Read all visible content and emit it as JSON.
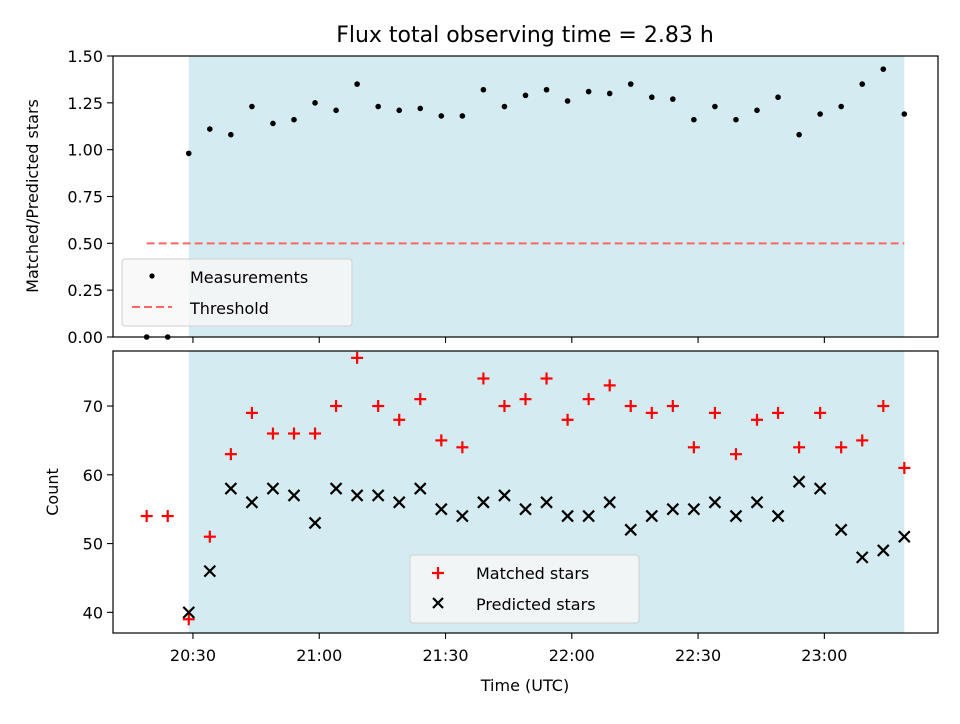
{
  "chart_data": [
    {
      "type": "scatter",
      "title": "Flux total observing time = 2.83 h",
      "ylabel": "Matched/Predicted stars",
      "ylim": [
        0,
        1.5
      ],
      "yticks": [
        "0.00",
        "0.25",
        "0.50",
        "0.75",
        "1.00",
        "1.25",
        "1.50"
      ],
      "shaded_span": [
        "20:29",
        "23:19"
      ],
      "legend_placement": "lower-left",
      "series": [
        {
          "name": "Measurements",
          "x": [
            "20:19",
            "20:24",
            "20:29",
            "20:34",
            "20:39",
            "20:44",
            "20:49",
            "20:54",
            "20:59",
            "21:04",
            "21:09",
            "21:14",
            "21:19",
            "21:24",
            "21:29",
            "21:34",
            "21:39",
            "21:44",
            "21:49",
            "21:54",
            "21:59",
            "22:04",
            "22:09",
            "22:14",
            "22:19",
            "22:24",
            "22:29",
            "22:34",
            "22:39",
            "22:44",
            "22:49",
            "22:54",
            "22:59",
            "23:04",
            "23:09",
            "23:14",
            "23:19"
          ],
          "y": [
            0.0,
            0.0,
            0.98,
            1.11,
            1.08,
            1.23,
            1.14,
            1.16,
            1.25,
            1.21,
            1.35,
            1.23,
            1.21,
            1.22,
            1.18,
            1.18,
            1.32,
            1.23,
            1.29,
            1.32,
            1.26,
            1.31,
            1.3,
            1.35,
            1.28,
            1.27,
            1.16,
            1.23,
            1.16,
            1.21,
            1.28,
            1.08,
            1.19,
            1.23,
            1.35,
            1.43,
            1.19
          ],
          "color": "#000000"
        },
        {
          "name": "Threshold",
          "x": [
            "20:19",
            "23:19"
          ],
          "y": [
            0.5,
            0.5
          ],
          "color": "#ff6666",
          "style": "dashed"
        }
      ]
    },
    {
      "type": "scatter",
      "xlabel": "Time (UTC)",
      "ylabel": "Count",
      "yticks": [
        "40",
        "50",
        "60",
        "70"
      ],
      "ylim": [
        37,
        78
      ],
      "xticks": [
        "20:30",
        "21:00",
        "21:30",
        "22:00",
        "22:30",
        "23:00"
      ],
      "shaded_span": [
        "20:29",
        "23:19"
      ],
      "legend_placement": "bottom-center",
      "series": [
        {
          "name": "Matched stars",
          "x": [
            "20:19",
            "20:24",
            "20:29",
            "20:34",
            "20:39",
            "20:44",
            "20:49",
            "20:54",
            "20:59",
            "21:04",
            "21:09",
            "21:14",
            "21:19",
            "21:24",
            "21:29",
            "21:34",
            "21:39",
            "21:44",
            "21:49",
            "21:54",
            "21:59",
            "22:04",
            "22:09",
            "22:14",
            "22:19",
            "22:24",
            "22:29",
            "22:34",
            "22:39",
            "22:44",
            "22:49",
            "22:54",
            "22:59",
            "23:04",
            "23:09",
            "23:14",
            "23:19"
          ],
          "y": [
            54,
            54,
            39,
            51,
            63,
            69,
            66,
            66,
            66,
            70,
            77,
            70,
            68,
            71,
            65,
            64,
            74,
            70,
            71,
            74,
            68,
            71,
            73,
            70,
            69,
            70,
            64,
            69,
            63,
            68,
            69,
            64,
            69,
            64,
            65,
            70,
            61
          ],
          "color": "#ff0000",
          "marker": "plus"
        },
        {
          "name": "Predicted stars",
          "x": [
            "20:29",
            "20:34",
            "20:39",
            "20:44",
            "20:49",
            "20:54",
            "20:59",
            "21:04",
            "21:09",
            "21:14",
            "21:19",
            "21:24",
            "21:29",
            "21:34",
            "21:39",
            "21:44",
            "21:49",
            "21:54",
            "21:59",
            "22:04",
            "22:09",
            "22:14",
            "22:19",
            "22:24",
            "22:29",
            "22:34",
            "22:39",
            "22:44",
            "22:49",
            "22:54",
            "22:59",
            "23:04",
            "23:09",
            "23:14",
            "23:19"
          ],
          "y": [
            40,
            46,
            58,
            56,
            58,
            57,
            53,
            58,
            57,
            57,
            56,
            58,
            55,
            54,
            56,
            57,
            55,
            56,
            54,
            54,
            56,
            52,
            54,
            55,
            55,
            56,
            54,
            56,
            54,
            59,
            58,
            52,
            48,
            49,
            51
          ],
          "color": "#000000",
          "marker": "x"
        }
      ]
    }
  ],
  "colors": {
    "span": "#d4ebf1",
    "axis": "#000000"
  }
}
